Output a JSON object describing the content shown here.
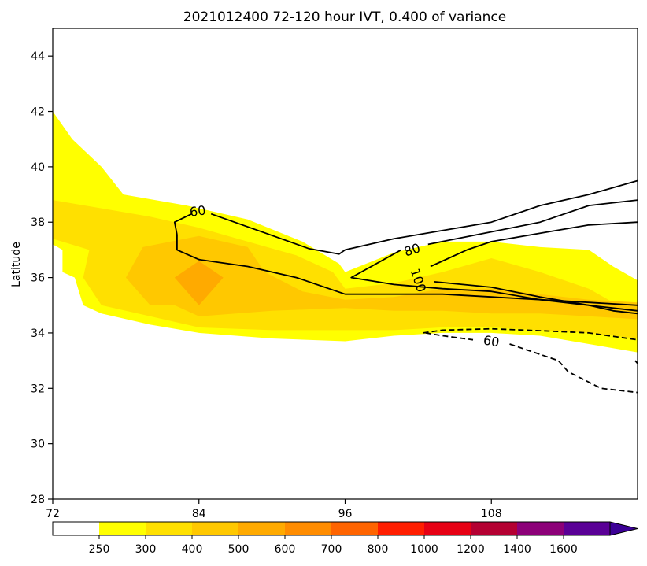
{
  "chart_data": {
    "type": "contour",
    "title": "2021012400 72-120 hour IVT, 0.400 of variance",
    "ylabel": "Latitude",
    "xlabel": "",
    "xlim": [
      72,
      120
    ],
    "ylim": [
      28,
      45
    ],
    "x_ticks": [
      72,
      84,
      96,
      108
    ],
    "y_ticks": [
      28,
      30,
      32,
      34,
      36,
      38,
      40,
      42,
      44
    ],
    "filled": [
      {
        "level": 250,
        "color": "#ffff00",
        "polygon": [
          [
            72,
            42
          ],
          [
            73.6,
            41
          ],
          [
            76,
            40
          ],
          [
            77.8,
            39
          ],
          [
            83,
            38.6
          ],
          [
            88,
            38.1
          ],
          [
            92.5,
            37.3
          ],
          [
            95.5,
            36.5
          ],
          [
            96,
            36.2
          ],
          [
            100,
            36.9
          ],
          [
            104,
            37.3
          ],
          [
            108,
            37.3
          ],
          [
            112,
            37.1
          ],
          [
            116,
            37
          ],
          [
            118,
            36.4
          ],
          [
            120,
            35.9
          ],
          [
            120,
            33.3
          ],
          [
            116,
            33.6
          ],
          [
            112,
            33.9
          ],
          [
            108,
            34
          ],
          [
            104,
            34
          ],
          [
            100,
            33.9
          ],
          [
            96,
            33.7
          ],
          [
            90,
            33.8
          ],
          [
            84,
            34
          ],
          [
            80,
            34.3
          ],
          [
            76,
            34.7
          ],
          [
            74.5,
            35
          ],
          [
            73.8,
            36
          ],
          [
            72.8,
            36.2
          ],
          [
            72.8,
            37
          ],
          [
            72,
            37.2
          ]
        ]
      },
      {
        "level": 300,
        "color": "#ffe000",
        "polygon": [
          [
            72,
            38.8
          ],
          [
            76,
            38.5
          ],
          [
            80,
            38.2
          ],
          [
            84,
            37.8
          ],
          [
            88,
            37.3
          ],
          [
            92,
            36.8
          ],
          [
            95,
            36.2
          ],
          [
            96,
            35.6
          ],
          [
            100,
            35.8
          ],
          [
            104,
            36.2
          ],
          [
            108,
            36.7
          ],
          [
            112,
            36.2
          ],
          [
            116,
            35.6
          ],
          [
            118,
            35.1
          ],
          [
            120,
            34.9
          ],
          [
            120,
            33.8
          ],
          [
            116,
            34.0
          ],
          [
            112,
            34.1
          ],
          [
            108,
            34.2
          ],
          [
            104,
            34.2
          ],
          [
            100,
            34.1
          ],
          [
            96,
            34.1
          ],
          [
            90,
            34.1
          ],
          [
            84,
            34.2
          ],
          [
            80,
            34.6
          ],
          [
            76,
            35.0
          ],
          [
            74.5,
            36
          ],
          [
            75,
            37
          ],
          [
            72,
            37.4
          ]
        ]
      },
      {
        "level": 400,
        "color": "#ffc800",
        "polygon": [
          [
            78,
            36
          ],
          [
            79.4,
            37.1
          ],
          [
            84,
            37.5
          ],
          [
            88,
            37.1
          ],
          [
            89.4,
            36.2
          ],
          [
            92.5,
            35.5
          ],
          [
            96,
            35.2
          ],
          [
            100,
            35.3
          ],
          [
            104,
            35.6
          ],
          [
            108,
            35.6
          ],
          [
            112,
            35.4
          ],
          [
            116,
            35.2
          ],
          [
            120,
            35.1
          ],
          [
            120,
            34.5
          ],
          [
            116,
            34.6
          ],
          [
            112,
            34.7
          ],
          [
            108,
            34.7
          ],
          [
            104,
            34.8
          ],
          [
            100,
            34.8
          ],
          [
            96,
            34.9
          ],
          [
            90,
            34.8
          ],
          [
            84,
            34.6
          ],
          [
            82,
            35
          ],
          [
            80,
            35
          ]
        ]
      },
      {
        "level": 500,
        "color": "#ffaa00",
        "polygon": [
          [
            82,
            36
          ],
          [
            84,
            36.6
          ],
          [
            86,
            36
          ],
          [
            84,
            35
          ]
        ]
      }
    ],
    "contours": [
      {
        "level": 60,
        "style": "solid",
        "label": "60",
        "label_at": [
          83.9,
          38.4
        ],
        "points": [
          [
            85,
            38.3
          ],
          [
            89.5,
            37.6
          ],
          [
            93,
            37.05
          ],
          [
            95.5,
            36.85
          ],
          [
            96,
            37.0
          ],
          [
            100,
            37.4
          ],
          [
            104,
            37.7
          ],
          [
            108,
            38
          ],
          [
            112,
            38.6
          ],
          [
            116,
            39
          ],
          [
            120,
            39.5
          ]
        ]
      },
      {
        "level": 60,
        "style": "solid",
        "label": "",
        "label_at": null,
        "points": [
          [
            82.2,
            37.55
          ],
          [
            82,
            38
          ],
          [
            83.4,
            38.3
          ]
        ]
      },
      {
        "level": 60,
        "style": "solid",
        "label": "",
        "label_at": null,
        "points": [
          [
            82.2,
            37.55
          ],
          [
            82.2,
            37
          ],
          [
            84,
            36.65
          ],
          [
            88,
            36.4
          ],
          [
            92,
            36
          ],
          [
            96,
            35.4
          ],
          [
            100,
            35.4
          ],
          [
            104,
            35.4
          ],
          [
            108,
            35.3
          ],
          [
            112,
            35.2
          ],
          [
            116,
            35.1
          ],
          [
            120,
            35.0
          ]
        ]
      },
      {
        "level": 80,
        "style": "solid",
        "label": "80",
        "label_at": [
          101.5,
          37.0
        ],
        "points": [
          [
            102.8,
            37.2
          ],
          [
            108,
            37.65
          ],
          [
            112,
            38.0
          ],
          [
            116,
            38.6
          ],
          [
            120,
            38.8
          ]
        ]
      },
      {
        "level": 80,
        "style": "solid",
        "label": "",
        "label_at": null,
        "points": [
          [
            100.6,
            37.0
          ],
          [
            96.5,
            36.0
          ],
          [
            100,
            35.75
          ],
          [
            104,
            35.6
          ],
          [
            108,
            35.5
          ],
          [
            112,
            35.2
          ],
          [
            116,
            35.0
          ],
          [
            118,
            34.9
          ],
          [
            120,
            34.8
          ]
        ]
      },
      {
        "level": 100,
        "style": "solid",
        "label": "100",
        "label_at": [
          102.0,
          35.9
        ],
        "points": [
          [
            103,
            36.4
          ],
          [
            106,
            37.0
          ],
          [
            108,
            37.3
          ],
          [
            112,
            37.6
          ],
          [
            116,
            37.9
          ],
          [
            120,
            38.0
          ]
        ]
      },
      {
        "level": 100,
        "style": "solid",
        "label": "",
        "label_at": null,
        "points": [
          [
            103.3,
            35.85
          ],
          [
            108,
            35.65
          ],
          [
            112,
            35.3
          ],
          [
            116,
            35.0
          ],
          [
            118,
            34.8
          ],
          [
            120,
            34.7
          ]
        ]
      },
      {
        "level": -60,
        "style": "dashed",
        "label": "60",
        "label_at": [
          108.0,
          33.7
        ],
        "points": [
          [
            102.4,
            34.0
          ],
          [
            104,
            34.1
          ],
          [
            108,
            34.15
          ],
          [
            112,
            34.08
          ],
          [
            116,
            34.0
          ],
          [
            120,
            33.75
          ]
        ]
      },
      {
        "level": -60,
        "style": "dashed",
        "label": "",
        "label_at": null,
        "points": [
          [
            102.6,
            34.0
          ],
          [
            104,
            33.9
          ],
          [
            106.5,
            33.75
          ]
        ]
      },
      {
        "level": -60,
        "style": "dashed",
        "label": "",
        "label_at": null,
        "points": [
          [
            109.5,
            33.6
          ],
          [
            113.5,
            33.0
          ],
          [
            114.3,
            32.6
          ],
          [
            117,
            32.0
          ],
          [
            120,
            31.85
          ]
        ]
      },
      {
        "level": -60,
        "style": "dashed",
        "label": "",
        "label_at": null,
        "points": [
          [
            119.8,
            33.0
          ],
          [
            120,
            32.9
          ]
        ]
      }
    ],
    "colorbar": {
      "orientation": "horizontal",
      "extend": "max",
      "boundaries": [
        0,
        250,
        300,
        400,
        500,
        600,
        700,
        800,
        1000,
        1200,
        1400,
        1600,
        1800
      ],
      "tick_labels": [
        "250",
        "300",
        "400",
        "500",
        "600",
        "700",
        "800",
        "1000",
        "1200",
        "1400",
        "1600"
      ],
      "colors": [
        "#ffffff",
        "#ffff00",
        "#ffe000",
        "#ffc800",
        "#ffaa00",
        "#ff8c00",
        "#ff6400",
        "#ff1e00",
        "#e60014",
        "#b40032",
        "#8c0078",
        "#5a0096"
      ],
      "extend_color": "#3c0096"
    }
  }
}
